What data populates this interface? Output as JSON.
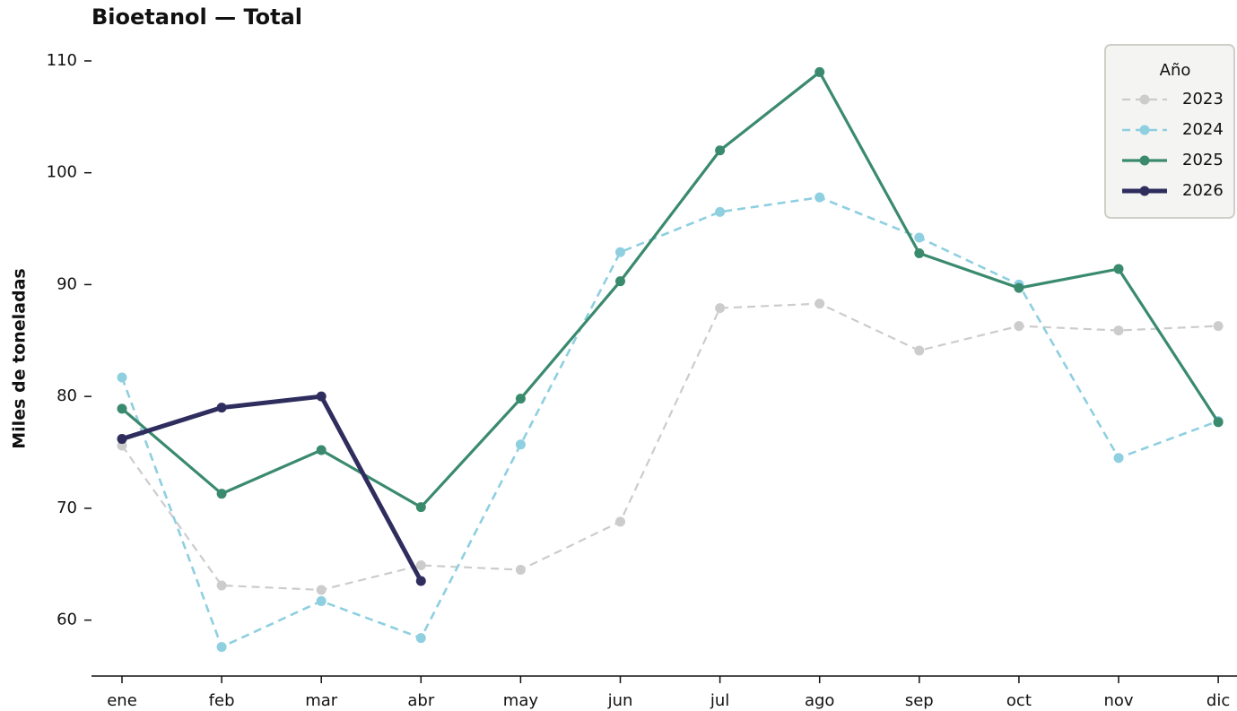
{
  "chart_data": {
    "type": "line",
    "title": "Bioetanol — Total",
    "y_label": "Miles de toneladas",
    "categories": [
      "ene",
      "feb",
      "mar",
      "abr",
      "may",
      "jun",
      "jul",
      "ago",
      "sep",
      "oct",
      "nov",
      "dic"
    ],
    "ylim": [
      55,
      111.6
    ],
    "yticks": [
      60,
      70,
      80,
      90,
      100,
      110
    ],
    "legend": "upper right",
    "legend_title": "Año",
    "series": [
      {
        "name": "2023",
        "color": "#cccccc",
        "dashed": true,
        "values": [
          75.6,
          63.1,
          62.7,
          64.9,
          64.5,
          68.8,
          87.9,
          88.3,
          84.1,
          86.3,
          85.9,
          86.3
        ]
      },
      {
        "name": "2024",
        "color": "#8ecfe0",
        "dashed": true,
        "values": [
          81.7,
          57.6,
          61.7,
          58.4,
          75.7,
          92.9,
          96.5,
          97.8,
          94.2,
          90.0,
          74.5,
          77.8
        ]
      },
      {
        "name": "2025",
        "color": "#3a8a6e",
        "dashed": false,
        "values": [
          78.9,
          71.3,
          75.2,
          70.1,
          79.8,
          90.3,
          102.0,
          109.0,
          92.8,
          89.7,
          91.4,
          77.7
        ]
      },
      {
        "name": "2026",
        "color": "#2e2d5e",
        "dashed": false,
        "values": [
          76.2,
          79.0,
          80.0,
          63.5,
          null,
          null,
          null,
          null,
          null,
          null,
          null,
          null
        ]
      }
    ]
  }
}
